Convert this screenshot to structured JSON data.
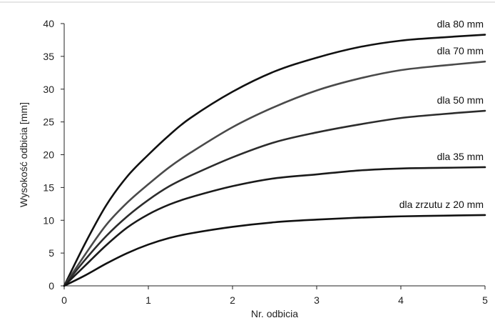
{
  "chart_data": {
    "type": "line",
    "title": "",
    "xlabel": "Nr. odbicia",
    "ylabel": "Wysokość odbicia [mm]",
    "xlim": [
      0,
      5
    ],
    "ylim": [
      0,
      40
    ],
    "x_ticks": [
      "0",
      "1",
      "2",
      "3",
      "4",
      "5"
    ],
    "y_ticks": [
      "0",
      "5",
      "10",
      "15",
      "20",
      "25",
      "30",
      "35",
      "40"
    ],
    "grid": false,
    "legend": "none (series labelled inline at right)",
    "x": [
      0,
      0.25,
      0.5,
      0.75,
      1,
      1.25,
      1.5,
      2,
      2.5,
      3,
      3.5,
      4,
      4.5,
      5
    ],
    "series": [
      {
        "name": "dla 80 mm",
        "color": "#111111",
        "values": [
          0,
          6.5,
          12.3,
          16.7,
          20.0,
          23.0,
          25.6,
          29.6,
          32.7,
          34.8,
          36.4,
          37.4,
          37.9,
          38.3
        ]
      },
      {
        "name": "dla 70 mm",
        "color": "#4a4a4a",
        "values": [
          0,
          4.8,
          9.3,
          12.7,
          15.5,
          18.1,
          20.3,
          24.2,
          27.3,
          29.8,
          31.6,
          32.9,
          33.6,
          34.2
        ]
      },
      {
        "name": "dla 50 mm",
        "color": "#2c2c2c",
        "values": [
          0,
          4.0,
          7.6,
          10.6,
          13.1,
          15.2,
          16.8,
          19.6,
          21.9,
          23.4,
          24.6,
          25.6,
          26.2,
          26.7
        ]
      },
      {
        "name": "dla 35 mm",
        "color": "#1a1a1a",
        "values": [
          0,
          3.1,
          6.2,
          8.9,
          10.9,
          12.4,
          13.5,
          15.2,
          16.4,
          17.0,
          17.6,
          17.9,
          18.0,
          18.1
        ]
      },
      {
        "name": "dla zrzutu z 20 mm",
        "color": "#111111",
        "values": [
          0,
          1.6,
          3.4,
          5.0,
          6.3,
          7.3,
          8.0,
          9.0,
          9.7,
          10.1,
          10.4,
          10.6,
          10.7,
          10.8
        ]
      }
    ]
  }
}
